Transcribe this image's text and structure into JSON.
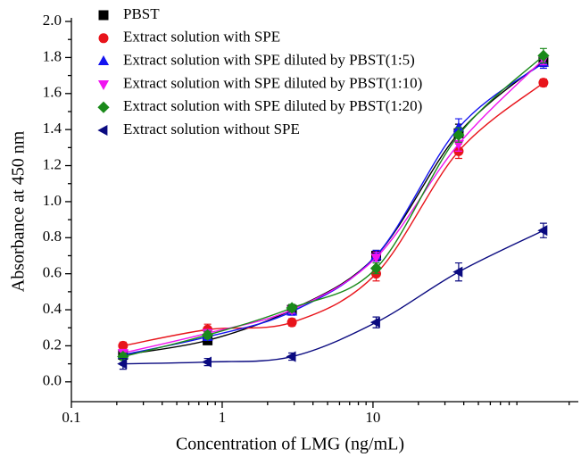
{
  "chart_data": {
    "type": "scatter",
    "x_label": "Concentration of LMG (ng/mL)",
    "y_label": "Absorbance at 450 nm",
    "x": [
      0.22,
      0.8,
      2.9,
      10.5,
      37,
      135
    ],
    "log_x": true,
    "xlim": [
      0.1,
      230
    ],
    "xticks": [
      0.1,
      1,
      10
    ],
    "ylim": [
      -0.11,
      2.02
    ],
    "yticks": [
      {
        "value": 0,
        "label": "0.0"
      },
      0.2,
      0.4,
      0.6,
      0.8,
      {
        "value": 1,
        "label": "1.0"
      },
      1.2,
      1.4,
      1.6,
      1.8,
      {
        "value": 2,
        "label": "2.0"
      }
    ],
    "legend": "upper left",
    "fit_curves": true,
    "series": [
      {
        "name": "PBST",
        "color": "#000000",
        "marker": "square",
        "values": [
          0.15,
          0.23,
          0.4,
          0.7,
          1.38,
          1.78
        ],
        "errors": [
          0.02,
          0.02,
          0.02,
          0.03,
          0.05,
          0.03
        ]
      },
      {
        "name": "Extract solution with SPE",
        "color": "#e8141b",
        "marker": "circle",
        "values": [
          0.2,
          0.29,
          0.33,
          0.6,
          1.28,
          1.66
        ],
        "errors": [
          0.02,
          0.03,
          0.02,
          0.04,
          0.04,
          0.02
        ]
      },
      {
        "name": "Extract solution with SPE diluted by PBST(1:5)",
        "color": "#1414f0",
        "marker": "triangle-up",
        "values": [
          0.15,
          0.25,
          0.39,
          0.7,
          1.41,
          1.77
        ],
        "errors": [
          0.02,
          0.02,
          0.02,
          0.03,
          0.05,
          0.03
        ]
      },
      {
        "name": "Extract solution with SPE diluted by PBST(1:10)",
        "color": "#f014f0",
        "marker": "triangle-down",
        "values": [
          0.16,
          0.27,
          0.4,
          0.69,
          1.32,
          1.79
        ],
        "errors": [
          0.02,
          0.02,
          0.02,
          0.03,
          0.04,
          0.03
        ]
      },
      {
        "name": "Extract solution with SPE diluted by PBST(1:20)",
        "color": "#1a8a1a",
        "marker": "diamond",
        "values": [
          0.14,
          0.26,
          0.41,
          0.63,
          1.37,
          1.81
        ],
        "errors": [
          0.02,
          0.02,
          0.02,
          0.03,
          0.04,
          0.04
        ]
      },
      {
        "name": "Extract solution without SPE",
        "color": "#0a0a80",
        "marker": "triangle-left",
        "values": [
          0.1,
          0.11,
          0.14,
          0.33,
          0.61,
          0.84
        ],
        "errors": [
          0.03,
          0.02,
          0.02,
          0.03,
          0.05,
          0.04
        ]
      }
    ]
  }
}
